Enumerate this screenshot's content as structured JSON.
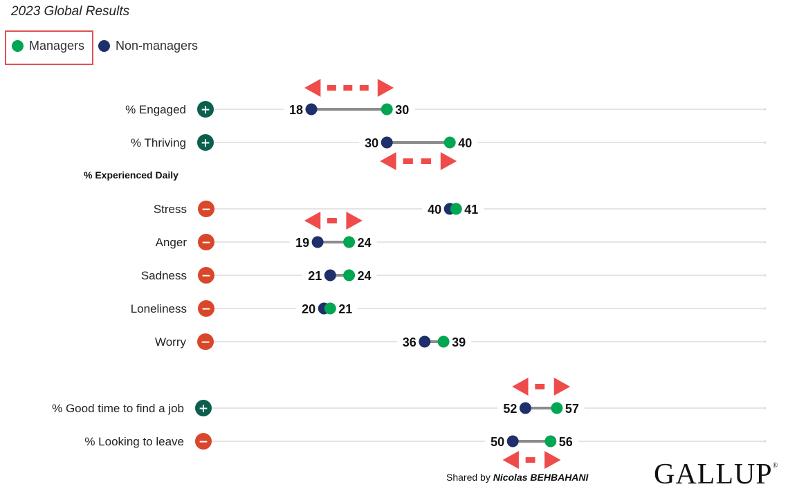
{
  "title": "2023 Global Results",
  "legend": [
    {
      "label": "Managers",
      "color": "#00a651"
    },
    {
      "label": "Non-managers",
      "color": "#1f2f6b"
    }
  ],
  "colors": {
    "positive_sign": "#0b5f4c",
    "negative_sign": "#d9472b",
    "connector": "#8c8c8c",
    "baseline": "#c8c8c8",
    "annotation_arrow": "#ef4b4b"
  },
  "section_label": "% Experienced Daily",
  "credit": {
    "prefix": "Shared by ",
    "name": "Nicolas BEHBAHANI"
  },
  "logo": {
    "text": "GALLUP",
    "mark": "®"
  },
  "chart_data": {
    "type": "dumbbell",
    "series": [
      {
        "name": "Managers",
        "color": "#00a651"
      },
      {
        "name": "Non-managers",
        "color": "#1f2f6b"
      }
    ],
    "rows": [
      {
        "label": "% Engaged",
        "sign": "+",
        "managers": 30,
        "non_managers": 18,
        "arrow": "above"
      },
      {
        "label": "% Thriving",
        "sign": "+",
        "managers": 40,
        "non_managers": 30,
        "arrow": "below"
      },
      {
        "label": "Stress",
        "sign": "−",
        "managers": 41,
        "non_managers": 40
      },
      {
        "label": "Anger",
        "sign": "−",
        "managers": 24,
        "non_managers": 19,
        "arrow": "above"
      },
      {
        "label": "Sadness",
        "sign": "−",
        "managers": 24,
        "non_managers": 21
      },
      {
        "label": "Loneliness",
        "sign": "−",
        "managers": 21,
        "non_managers": 20
      },
      {
        "label": "Worry",
        "sign": "−",
        "managers": 39,
        "non_managers": 36
      },
      {
        "label": "% Good time to find a job",
        "sign": "+",
        "managers": 57,
        "non_managers": 52,
        "arrow": "above"
      },
      {
        "label": "% Looking to leave",
        "sign": "−",
        "managers": 56,
        "non_managers": 50,
        "arrow": "below"
      }
    ],
    "xlim": [
      0,
      100
    ],
    "grid": false,
    "legend_position": "top-left"
  }
}
